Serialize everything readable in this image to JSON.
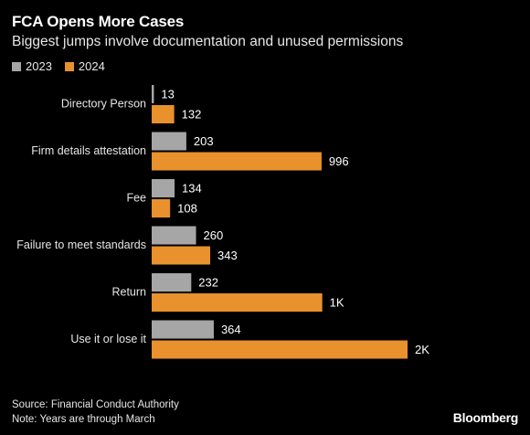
{
  "header": {
    "title": "FCA Opens More Cases",
    "subtitle": "Biggest jumps involve documentation and unused permissions"
  },
  "footer": {
    "source": "Source: Financial Conduct Authority",
    "note": "Note: Years are through March",
    "brand": "Bloomberg"
  },
  "chart_data": {
    "type": "bar",
    "orientation": "horizontal",
    "title": "FCA Opens More Cases",
    "subtitle": "Biggest jumps involve documentation and unused permissions",
    "categories": [
      "Directory Person",
      "Firm details attestation",
      "Fee",
      "Failure to meet standards",
      "Return",
      "Use it or lose it"
    ],
    "series": [
      {
        "name": "2023",
        "color": "#a6a6a6",
        "values": [
          13,
          203,
          134,
          260,
          232,
          364
        ],
        "labels": [
          "13",
          "203",
          "134",
          "260",
          "232",
          "364"
        ]
      },
      {
        "name": "2024",
        "color": "#e8912d",
        "values": [
          132,
          996,
          108,
          343,
          1000,
          1500
        ],
        "labels": [
          "132",
          "996",
          "108",
          "343",
          "1K",
          "2K"
        ]
      }
    ],
    "xlim": [
      0,
      1500
    ],
    "grid": false,
    "legend_position": "top-left"
  }
}
